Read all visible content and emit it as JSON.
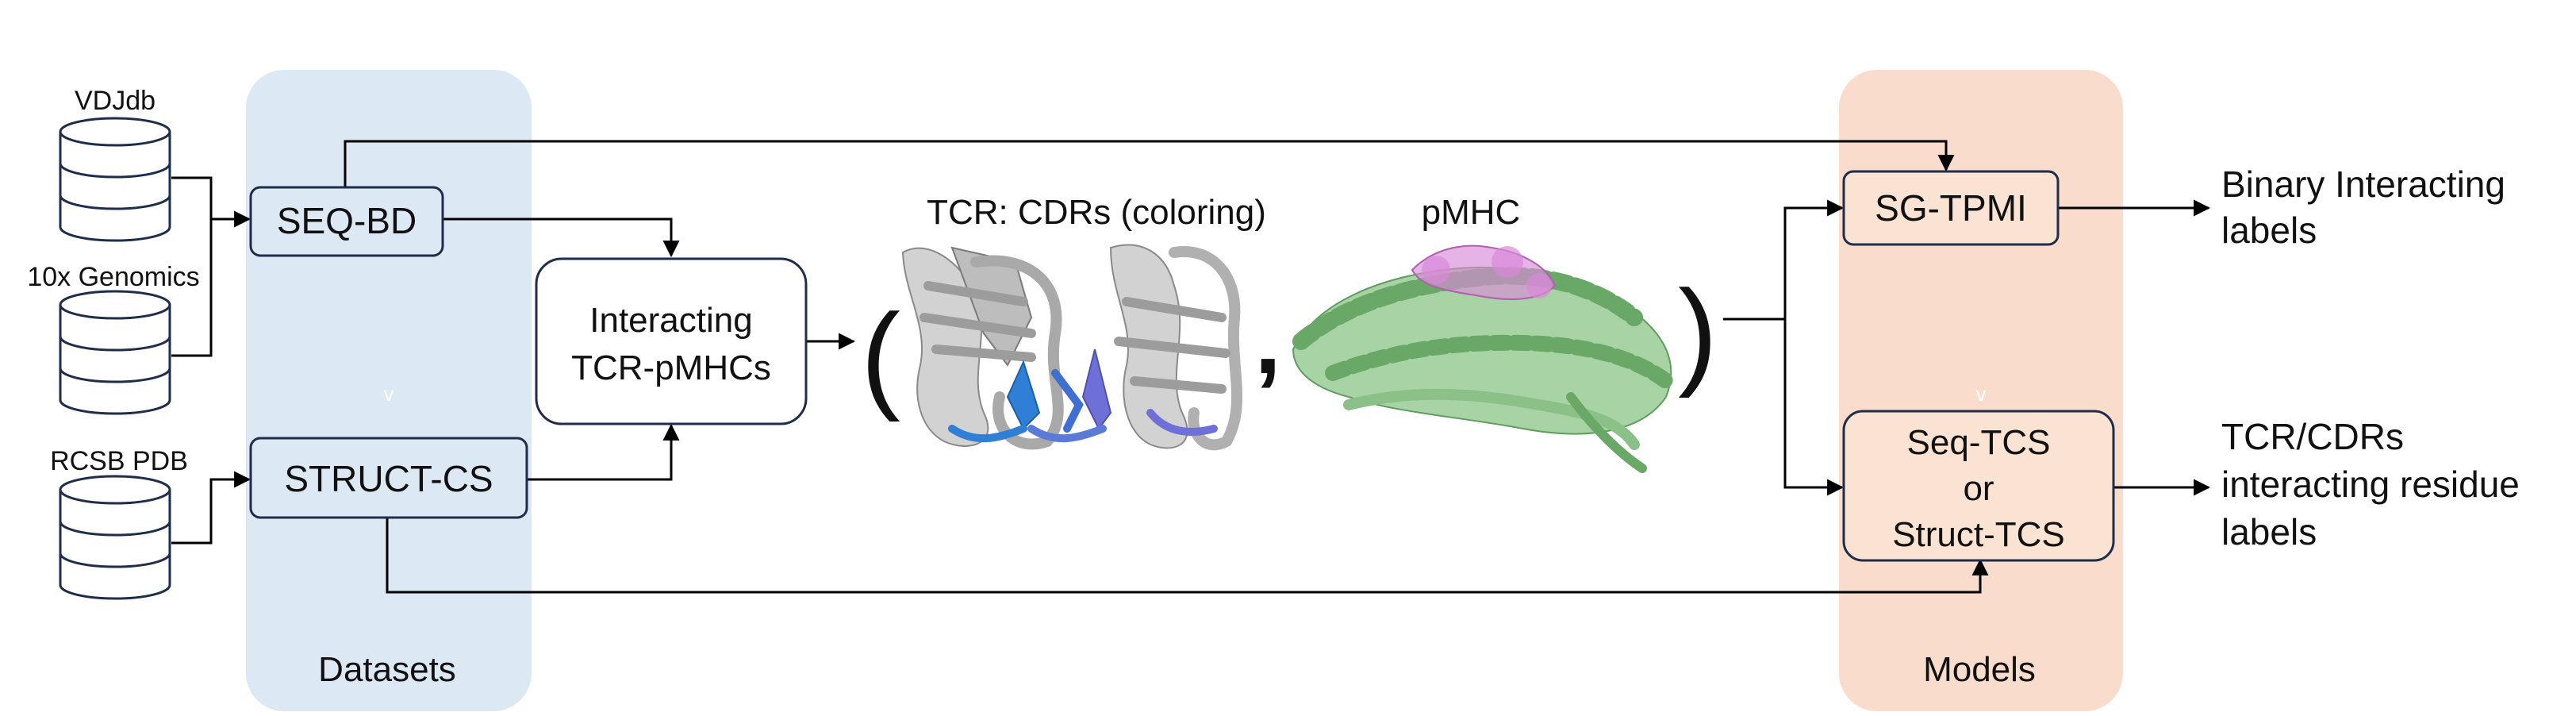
{
  "colors": {
    "datasets_panel": "#dde8f5",
    "models_panel": "#f9dccb",
    "dataset_box_fill": "#dde8f5",
    "model_box_fill": "#fbe3d4",
    "box_stroke": "#1f2d4a",
    "line": "#000000",
    "tcr_gray": "#c9c9c9",
    "cdr_blue": "#2f7fd6",
    "cdr_purple": "#6f6fd8",
    "mhc_green": "#7cb77b",
    "peptide_pink": "#d98ad9"
  },
  "databases": [
    {
      "label": "VDJdb"
    },
    {
      "label": "10x Genomics"
    },
    {
      "label": "RCSB PDB"
    }
  ],
  "datasets": {
    "panel_label": "Datasets",
    "seq_bd": "SEQ-BD",
    "struct_cs": "STRUCT-CS",
    "panel_mark": "v"
  },
  "interacting_box": {
    "line1": "Interacting",
    "line2": "TCR-pMHCs"
  },
  "structures": {
    "open_paren": "(",
    "comma": ",",
    "close_paren": ")",
    "tcr_caption": "TCR: CDRs (coloring)",
    "pmhc_caption": "pMHC"
  },
  "models": {
    "panel_label": "Models",
    "sg_tpmi": "SG-TPMI",
    "seq_tcs_line1": "Seq-TCS",
    "seq_tcs_line2": "or",
    "seq_tcs_line3": "Struct-TCS",
    "panel_mark": "v"
  },
  "outputs": {
    "binary_line1": "Binary Interacting",
    "binary_line2": "labels",
    "residue_line1": "TCR/CDRs",
    "residue_line2": "interacting residue",
    "residue_line3": "labels"
  }
}
